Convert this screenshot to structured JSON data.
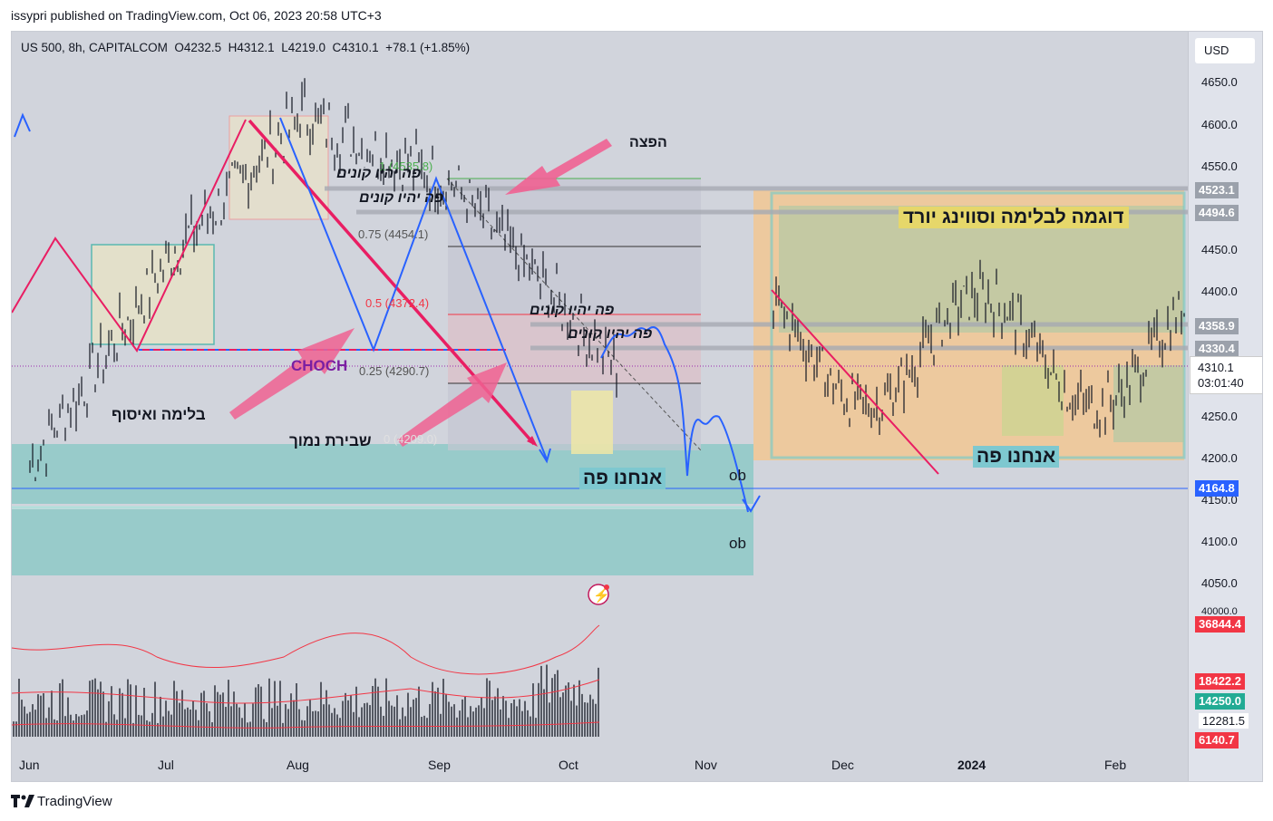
{
  "header": {
    "published_line": "issypri published on TradingView.com, Oct 06, 2023 20:58 UTC+3"
  },
  "legend": {
    "symbol": "US 500, 8h, CAPITALCOM",
    "open": "O4232.5",
    "high": "H4312.1",
    "low": "L4219.0",
    "close": "C4310.1",
    "change": "+78.1 (+1.85%)"
  },
  "price_axis": {
    "currency_button": "USD",
    "ticks": [
      "4650.0",
      "4600.0",
      "4550.0",
      "4450.0",
      "4400.0",
      "4250.0",
      "4200.0",
      "4150.0",
      "4100.0",
      "4050.0",
      "40000.0"
    ],
    "badges": [
      {
        "label": "4523.1",
        "bg": "#9ba1ab",
        "fg": "#ffffff"
      },
      {
        "label": "4494.6",
        "bg": "#9ba1ab",
        "fg": "#ffffff"
      },
      {
        "label": "4358.9",
        "bg": "#9ba1ab",
        "fg": "#ffffff"
      },
      {
        "label": "4330.4",
        "bg": "#9ba1ab",
        "fg": "#ffffff"
      },
      {
        "label": "4164.8",
        "bg": "#2962ff",
        "fg": "#ffffff"
      },
      {
        "label": "36844.4",
        "bg": "#f23645",
        "fg": "#ffffff"
      },
      {
        "label": "18422.2",
        "bg": "#f23645",
        "fg": "#ffffff"
      },
      {
        "label": "14250.0",
        "bg": "#22ab94",
        "fg": "#ffffff"
      },
      {
        "label": "6140.7",
        "bg": "#f23645",
        "fg": "#ffffff"
      }
    ],
    "last_price": "4310.1",
    "countdown": "03:01:40",
    "volume_plain": "12281.5"
  },
  "time_axis": [
    "Jun",
    "Jul",
    "Aug",
    "Sep",
    "Oct",
    "Nov",
    "Dec",
    "2024",
    "Feb"
  ],
  "fib_levels": [
    {
      "label": "1 (4535.8)",
      "color": "#4caf50"
    },
    {
      "label": "0.75 (4454.1)",
      "color": "#555555"
    },
    {
      "label": "0.5 (4372.4)",
      "color": "#f23645"
    },
    {
      "label": "0.25 (4290.7)",
      "color": "#555555"
    },
    {
      "label": "0 (4209.0)",
      "color": "#cccccc"
    }
  ],
  "annotations": {
    "spread": "הפצה",
    "buyers_here_1": "פה יהיו קונים",
    "buyers_here_2": "פה יהיו קונים",
    "buyers_here_3": "פה יהיו קונים",
    "buyers_here_4": "פה יהיו קונים",
    "choch": "CHOCH",
    "absorption": "בלימה ואיסוף",
    "low_break": "שבירת נמוך",
    "we_are_here_1": "אנחנו פה",
    "we_are_here_2": "אנחנו פה",
    "example": "דוגמה לבלימה וסווינג יורד",
    "ob_1": "ob",
    "ob_2": "ob"
  },
  "colors": {
    "bull": "#131722",
    "pink": "#e91e63",
    "blue": "#2962ff",
    "teal_zone": "#80cbc4",
    "orange_zone": "#ffcc80"
  },
  "footer": {
    "brand": "TradingView"
  },
  "chart_data": {
    "type": "line",
    "title": "US 500, 8h, CAPITALCOM",
    "xlabel": "",
    "ylabel": "",
    "ylim": [
      4040,
      4670
    ],
    "x": [
      "Jun",
      "Jul",
      "Aug",
      "Sep",
      "Oct"
    ],
    "series": [
      {
        "values": [
          4205,
          4440,
          4590,
          4510,
          4310
        ]
      }
    ],
    "last": {
      "open": 4232.5,
      "high": 4312.1,
      "low": 4219.0,
      "close": 4310.1
    },
    "fib": [
      4535.8,
      4454.1,
      4372.4,
      4290.7,
      4209.0
    ],
    "levels": [
      4523.1,
      4494.6,
      4358.9,
      4330.4,
      4164.8
    ]
  }
}
